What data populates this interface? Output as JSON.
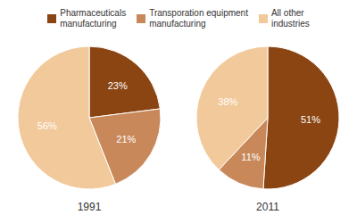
{
  "chart_data": [
    {
      "type": "pie",
      "title": "1991",
      "categories": [
        "Pharmaceuticals\nmanufacturing",
        "Transporation equipment\nmanufacturing",
        "All other\nindustries"
      ],
      "values": [
        23,
        21,
        56
      ],
      "value_labels": [
        "23%",
        "21%",
        "56%"
      ],
      "colors": [
        "#8B4513",
        "#C8885A",
        "#F2C99A"
      ],
      "data_labels": true,
      "legend": "top"
    },
    {
      "type": "pie",
      "title": "2011",
      "categories": [
        "Pharmaceuticals\nmanufacturing",
        "Transporation equipment\nmanufacturing",
        "All other\nindustries"
      ],
      "values": [
        51,
        11,
        38
      ],
      "value_labels": [
        "51%",
        "11%",
        "38%"
      ],
      "colors": [
        "#8B4513",
        "#C8885A",
        "#F2C99A"
      ],
      "data_labels": true,
      "legend": "top"
    }
  ]
}
